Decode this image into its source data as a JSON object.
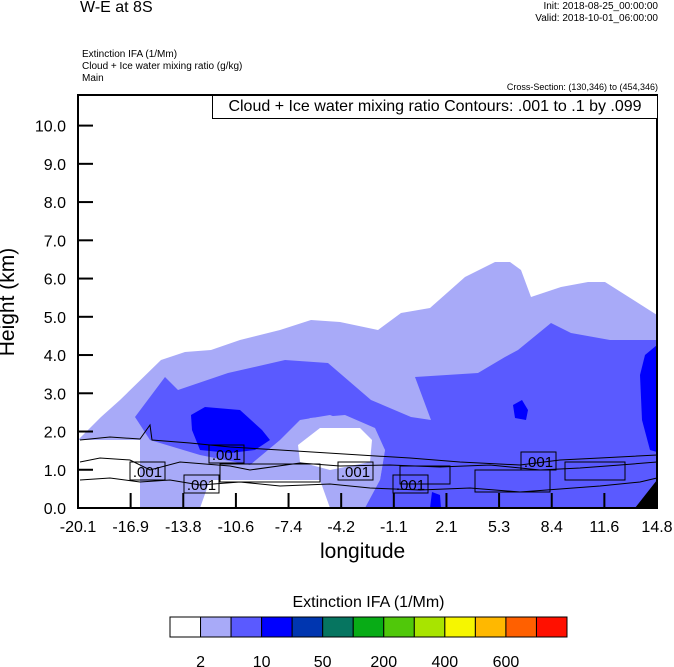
{
  "header": {
    "title": "W-E at 8S",
    "init": "Init: 2018-08-25_00:00:00",
    "valid": "Valid: 2018-10-01_06:00:00",
    "field1": "Extinction IFA   (1/Mm)",
    "field2": "Cloud + Ice water mixing ratio   (g/kg)",
    "field3": "Main",
    "cross_section": "Cross-Section: (130,346) to (454,346)"
  },
  "chart_data": {
    "type": "heatmap",
    "title": "W-E at 8S",
    "contour_info": "Cloud + Ice water mixing ratio Contours: .001 to .1 by .099",
    "xlabel": "longitude",
    "ylabel": "Height (km)",
    "xticks": [
      "-20.1",
      "-16.9",
      "-13.8",
      "-10.6",
      "-7.4",
      "-4.2",
      "-1.1",
      "2.1",
      "5.3",
      "8.4",
      "11.6",
      "14.8"
    ],
    "yticks": [
      "0.0",
      "1.0",
      "2.0",
      "3.0",
      "4.0",
      "5.0",
      "6.0",
      "7.0",
      "8.0",
      "9.0",
      "10.0"
    ],
    "xlim": [
      -20.1,
      14.8
    ],
    "ylim": [
      0,
      10.8
    ],
    "contour_labels": [
      ".001",
      ".001",
      ".001",
      ".001",
      ".001",
      ".001"
    ],
    "colorbar": {
      "title": "Extinction IFA  (1/Mm)",
      "colors": [
        "#ffffff",
        "#a8aaf8",
        "#5a5aff",
        "#0000ff",
        "#0036b0",
        "#067560",
        "#08ac16",
        "#50c80a",
        "#a8e400",
        "#f6f600",
        "#ffb800",
        "#ff6000",
        "#ff1000"
      ],
      "labels": [
        "2",
        "10",
        "50",
        "200",
        "400",
        "600"
      ]
    }
  }
}
